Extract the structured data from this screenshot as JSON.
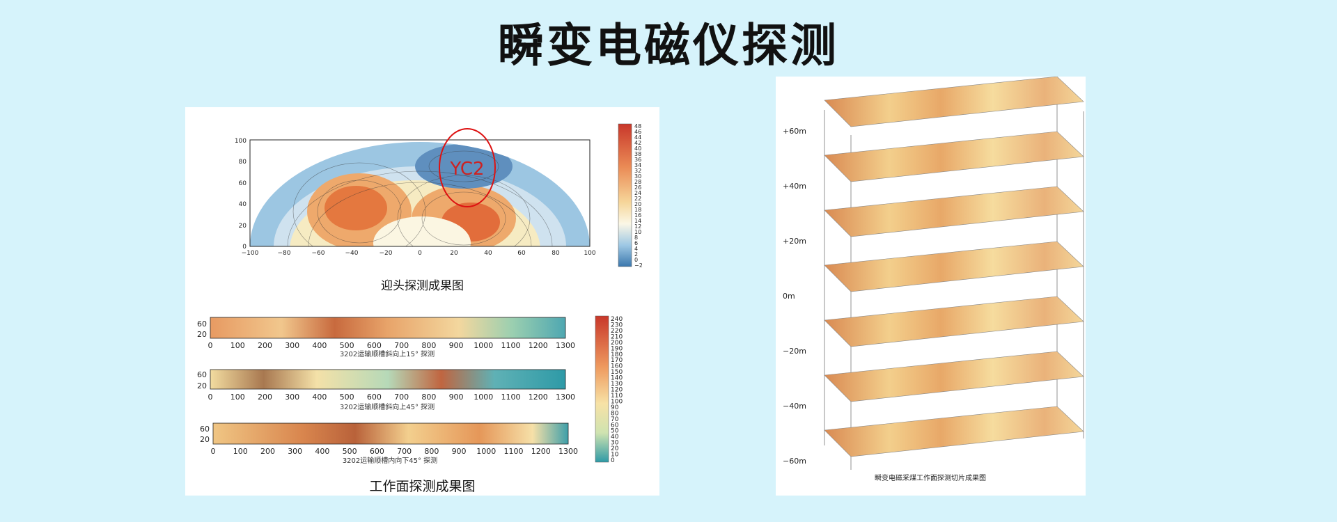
{
  "page": {
    "title": "瞬变电磁仪探测"
  },
  "left_figure": {
    "fan_plot": {
      "y_ticks": [
        "0",
        "20",
        "40",
        "60",
        "80",
        "100"
      ],
      "x_ticks": [
        "−100",
        "−80",
        "−60",
        "−40",
        "−20",
        "0",
        "20",
        "40",
        "60",
        "80",
        "100"
      ],
      "colorbar_ticks": [
        "48",
        "46",
        "44",
        "42",
        "40",
        "38",
        "36",
        "34",
        "32",
        "30",
        "28",
        "26",
        "24",
        "22",
        "20",
        "18",
        "16",
        "14",
        "12",
        "10",
        "8",
        "6",
        "4",
        "2",
        "0",
        "−2"
      ],
      "annotation": "YC2",
      "caption": "迎头探测成果图"
    },
    "strips": [
      {
        "y_ticks": [
          "60",
          "20"
        ],
        "caption": "3202运输顺槽斜向上15° 探测"
      },
      {
        "y_ticks": [
          "60",
          "20"
        ],
        "caption": "3202运输顺槽斜向上45° 探测"
      },
      {
        "y_ticks": [
          "60",
          "20"
        ],
        "caption": "3202运输顺槽内向下45° 探测"
      }
    ],
    "strip_x_ticks": [
      "0",
      "100",
      "200",
      "300",
      "400",
      "500",
      "600",
      "700",
      "800",
      "900",
      "1000",
      "1100",
      "1200",
      "1300"
    ],
    "strip_colorbar_ticks": [
      "240",
      "230",
      "220",
      "210",
      "200",
      "190",
      "180",
      "170",
      "160",
      "150",
      "140",
      "130",
      "120",
      "110",
      "100",
      "90",
      "80",
      "70",
      "60",
      "50",
      "40",
      "30",
      "20",
      "10",
      "0"
    ],
    "caption": "工作面探测成果图"
  },
  "right_figure": {
    "levels": [
      "+60m",
      "+40m",
      "+20m",
      "0m",
      "−20m",
      "−40m",
      "−60m"
    ],
    "caption": "瞬变电磁采煤工作面探测切片成果图"
  }
}
